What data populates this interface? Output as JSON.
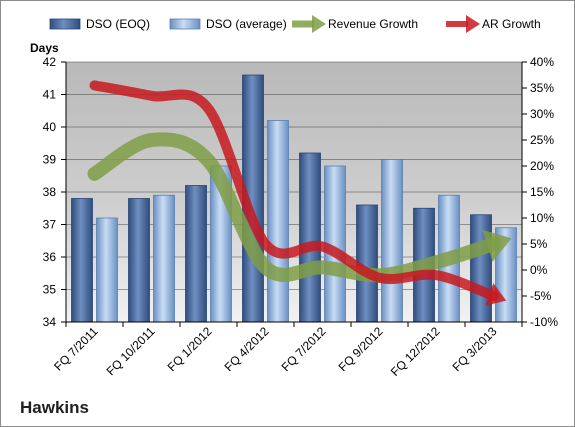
{
  "company_label": "Hawkins",
  "chart_data": {
    "type": "bar",
    "title": "",
    "categories": [
      "FQ 7/2011",
      "FQ 10/2011",
      "FQ 1/2012",
      "FQ 4/2012",
      "FQ 7/2012",
      "FQ 9/2012",
      "FQ 12/2012",
      "FQ 3/2013"
    ],
    "y_axis": {
      "label": "Days",
      "range": [
        34,
        42
      ],
      "ticks": [
        "34",
        "35",
        "36",
        "37",
        "38",
        "39",
        "40",
        "41",
        "42"
      ]
    },
    "y2_axis": {
      "label": "",
      "range": [
        -10,
        40
      ],
      "ticks": [
        "-10%",
        "-5%",
        "0%",
        "5%",
        "10%",
        "15%",
        "20%",
        "25%",
        "30%",
        "35%",
        "40%"
      ]
    },
    "series": [
      {
        "name": "DSO (EOQ)",
        "kind": "bar",
        "axis": "left",
        "color": "#4f6fa0",
        "values": [
          37.8,
          37.8,
          38.2,
          41.6,
          39.2,
          37.6,
          37.5,
          37.3
        ]
      },
      {
        "name": "DSO (average)",
        "kind": "bar",
        "axis": "left",
        "color": "#8fb2dc",
        "values": [
          37.2,
          37.9,
          38.8,
          40.2,
          38.8,
          39.0,
          37.9,
          36.9
        ]
      },
      {
        "name": "Revenue Growth",
        "kind": "arrow-line",
        "axis": "right",
        "color": "#7f9d46",
        "values": [
          18.5,
          25,
          21,
          0.5,
          0.5,
          -1,
          1.5,
          5
        ]
      },
      {
        "name": "AR Growth",
        "kind": "arrow-line",
        "axis": "right",
        "color": "#c8191e",
        "values": [
          35.5,
          33.5,
          31,
          5,
          4.5,
          -1.5,
          -1,
          -5
        ]
      }
    ],
    "legend_position": "top",
    "grid": true
  }
}
